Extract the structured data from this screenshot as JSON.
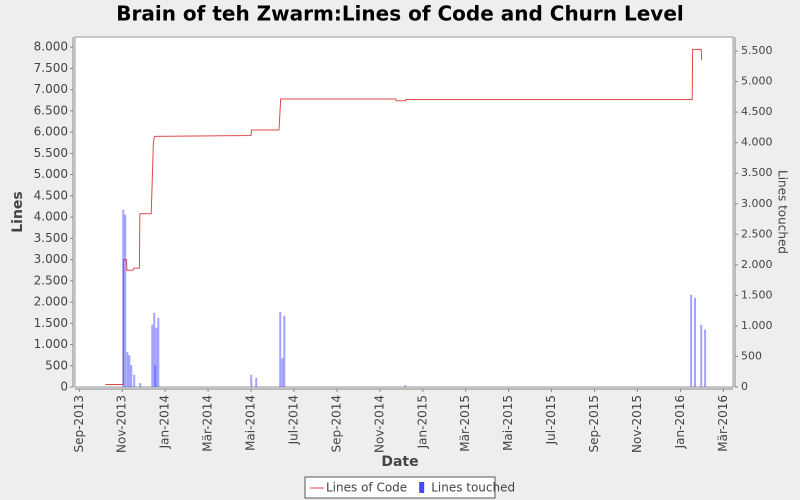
{
  "chart_data": {
    "type": "line",
    "title": "Brain of teh Zwarm:Lines of Code and Churn Level",
    "xlabel": "Date",
    "ylabel": "Lines",
    "y2label": "Lines touched",
    "xlim": [
      -0.2,
      30.45
    ],
    "xticks": [
      {
        "value": 0,
        "label": "Sep-2013"
      },
      {
        "value": 2,
        "label": "Nov-2013"
      },
      {
        "value": 4,
        "label": "Jan-2014"
      },
      {
        "value": 6,
        "label": "Mär-2014"
      },
      {
        "value": 8,
        "label": "Mai-2014"
      },
      {
        "value": 10,
        "label": "Jul-2014"
      },
      {
        "value": 12,
        "label": "Sep-2014"
      },
      {
        "value": 14,
        "label": "Nov-2014"
      },
      {
        "value": 16,
        "label": "Jan-2015"
      },
      {
        "value": 18,
        "label": "Mär-2015"
      },
      {
        "value": 20,
        "label": "Mai-2015"
      },
      {
        "value": 22,
        "label": "Jul-2015"
      },
      {
        "value": 24,
        "label": "Sep-2015"
      },
      {
        "value": 26,
        "label": "Nov-2015"
      },
      {
        "value": 28,
        "label": "Jan-2016"
      },
      {
        "value": 30,
        "label": "Mär-2016"
      }
    ],
    "ylim": [
      0,
      8240
    ],
    "yticks": [
      0,
      500,
      {
        "value": 1000,
        "label": "1.000"
      },
      {
        "value": 1500,
        "label": "1.500"
      },
      {
        "value": 2000,
        "label": "2.000"
      },
      {
        "value": 2500,
        "label": "2.500"
      },
      {
        "value": 3000,
        "label": "3.000"
      },
      {
        "value": 3500,
        "label": "3.500"
      },
      {
        "value": 4000,
        "label": "4.000"
      },
      {
        "value": 4500,
        "label": "4.500"
      },
      {
        "value": 5000,
        "label": "5.000"
      },
      {
        "value": 5500,
        "label": "5.500"
      },
      {
        "value": 6000,
        "label": "6.000"
      },
      {
        "value": 6500,
        "label": "6.500"
      },
      {
        "value": 7000,
        "label": "7.000"
      },
      {
        "value": 7500,
        "label": "7.500"
      },
      {
        "value": 8000,
        "label": "8.000"
      }
    ],
    "y2lim": [
      0,
      5730
    ],
    "y2ticks": [
      0,
      500,
      {
        "value": 1000,
        "label": "1.000"
      },
      {
        "value": 1500,
        "label": "1.500"
      },
      {
        "value": 2000,
        "label": "2.000"
      },
      {
        "value": 2500,
        "label": "2.500"
      },
      {
        "value": 3000,
        "label": "3.000"
      },
      {
        "value": 3500,
        "label": "3.500"
      },
      {
        "value": 4000,
        "label": "4.000"
      },
      {
        "value": 4500,
        "label": "4.500"
      },
      {
        "value": 5000,
        "label": "5.000"
      },
      {
        "value": 5500,
        "label": "5.500"
      }
    ],
    "series": [
      {
        "name": "Lines of Code",
        "color": "#e04848",
        "kind": "line",
        "x": [
          1.21,
          2.05,
          2.05,
          2.2,
          2.22,
          2.5,
          2.55,
          2.8,
          2.82,
          3.35,
          3.4,
          3.45,
          3.5,
          8.0,
          8.02,
          9.3,
          9.32,
          9.38,
          14.75,
          14.77,
          15.2,
          15.22,
          28.55,
          28.57,
          28.97,
          28.99
        ],
        "values": [
          60,
          60,
          3000,
          3000,
          2750,
          2750,
          2800,
          2800,
          4080,
          4080,
          4900,
          5750,
          5900,
          5920,
          6050,
          6050,
          6200,
          6780,
          6780,
          6740,
          6740,
          6770,
          6770,
          7950,
          7950,
          7700
        ]
      },
      {
        "name": "Lines touched",
        "color": "#4848ff",
        "kind": "bar",
        "axis": "y2",
        "x": [
          2.05,
          2.14,
          2.24,
          2.33,
          2.42,
          2.56,
          2.84,
          3.4,
          3.49,
          3.54,
          3.59,
          3.68,
          8.01,
          8.24,
          9.36,
          9.46,
          9.55,
          15.18,
          28.5,
          28.68,
          28.97,
          29.15
        ],
        "values": [
          2900,
          2820,
          570,
          520,
          360,
          200,
          65,
          1020,
          1215,
          360,
          970,
          1130,
          200,
          150,
          1230,
          475,
          1165,
          30,
          1510,
          1460,
          1020,
          940
        ]
      }
    ]
  }
}
